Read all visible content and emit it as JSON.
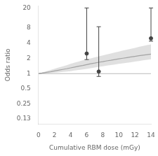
{
  "chart_data": {
    "type": "line",
    "xlabel": "Cumulative RBM dose (mGy)",
    "ylabel": "Odds ratio",
    "log": "y",
    "grid": false,
    "xlim": [
      0,
      14
    ],
    "xticks": [
      0,
      2,
      4,
      6,
      8,
      10,
      12,
      14
    ],
    "ylim": [
      0.1,
      22
    ],
    "yticks": [
      0.13,
      0.25,
      0.5,
      1,
      2,
      4,
      8,
      20
    ],
    "reference_line": 1,
    "x": [
      0,
      0.5,
      1,
      1.5,
      2,
      2.5,
      3,
      3.5,
      4,
      4.5,
      5,
      5.5,
      6,
      6.5,
      7,
      7.5,
      8,
      8.5,
      9,
      9.5,
      10,
      10.5,
      11,
      11.5,
      12,
      12.5,
      13,
      13.5,
      14
    ],
    "series": [
      {
        "type": "area",
        "color": "#cccccc",
        "lower": [
          1.0,
          1.01,
          1.02,
          1.03,
          1.04,
          1.06,
          1.08,
          1.1,
          1.12,
          1.15,
          1.18,
          1.21,
          1.24,
          1.28,
          1.32,
          1.36,
          1.4,
          1.44,
          1.48,
          1.52,
          1.56,
          1.6,
          1.64,
          1.68,
          1.73,
          1.78,
          1.83,
          1.88,
          1.93
        ],
        "upper": [
          1.0,
          1.06,
          1.12,
          1.18,
          1.25,
          1.32,
          1.39,
          1.47,
          1.56,
          1.65,
          1.74,
          1.83,
          1.92,
          2.01,
          2.1,
          2.2,
          2.3,
          2.4,
          2.5,
          2.62,
          2.74,
          2.86,
          2.98,
          3.1,
          3.24,
          3.38,
          3.52,
          3.66,
          3.8
        ]
      },
      {
        "type": "line",
        "color": "#666666",
        "values": [
          1.0,
          1.03,
          1.06,
          1.09,
          1.13,
          1.17,
          1.21,
          1.25,
          1.3,
          1.35,
          1.4,
          1.45,
          1.51,
          1.57,
          1.62,
          1.68,
          1.73,
          1.79,
          1.84,
          1.9,
          1.96,
          2.02,
          2.08,
          2.14,
          2.2,
          2.26,
          2.32,
          2.38,
          2.44
        ]
      },
      {
        "type": "scatter",
        "color": "#444444",
        "marker": "circle",
        "x": [
          6,
          7.5,
          14
        ],
        "values": [
          2.5,
          1.1,
          5.0
        ],
        "error_low": [
          1.9,
          0.88,
          4.4
        ],
        "error_high": [
          20.0,
          8.5,
          20.0
        ]
      }
    ]
  }
}
